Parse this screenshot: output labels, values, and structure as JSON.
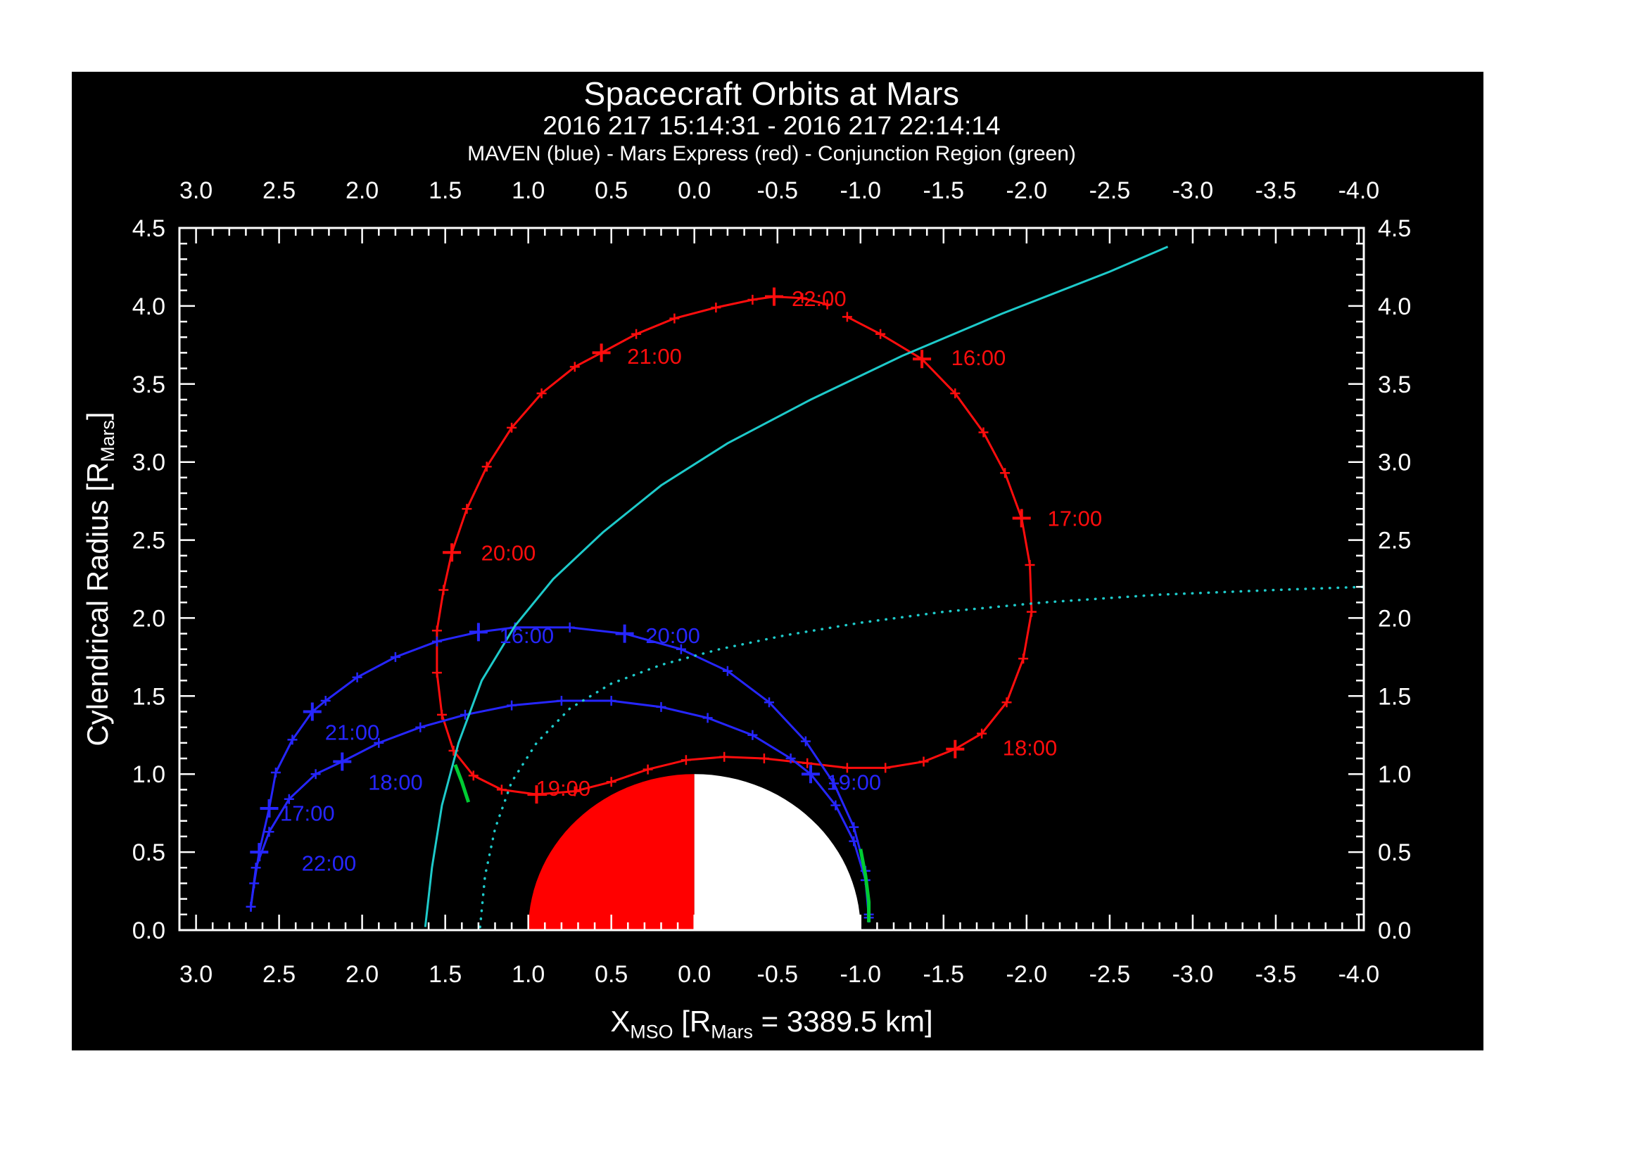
{
  "page": {
    "background": "#ffffff",
    "panel_background": "#000000"
  },
  "chart_data": {
    "type": "line",
    "title": "Spacecraft Orbits at Mars",
    "subtitle": "2016 217 15:14:31 - 2016 217 22:14:14",
    "legend_line": "MAVEN (blue) - Mars Express (red) - Conjunction Region (green)",
    "xlabel_parts": [
      "X",
      "MSO",
      " [R",
      "Mars",
      " = 3389.5 km]"
    ],
    "ylabel_parts": [
      "Cylendrical Radius [R",
      "Mars",
      "]"
    ],
    "x_range": [
      3.1,
      -4.03
    ],
    "y_range": [
      0.0,
      4.5
    ],
    "x_ticks": [
      3.0,
      2.5,
      2.0,
      1.5,
      1.0,
      0.5,
      0.0,
      -0.5,
      -1.0,
      -1.5,
      -2.0,
      -2.5,
      -3.0,
      -3.5,
      -4.0
    ],
    "x_tick_labels": [
      "3.0",
      "2.5",
      "2.0",
      "1.5",
      "1.0",
      "0.5",
      "0.0",
      "-0.5",
      "-1.0",
      "-1.5",
      "-2.0",
      "-2.5",
      "-3.0",
      "-3.5",
      "-4.0"
    ],
    "y_ticks": [
      0.0,
      0.5,
      1.0,
      1.5,
      2.0,
      2.5,
      3.0,
      3.5,
      4.0,
      4.5
    ],
    "y_tick_labels": [
      "0.0",
      "0.5",
      "1.0",
      "1.5",
      "2.0",
      "2.5",
      "3.0",
      "3.5",
      "4.0",
      "4.5"
    ],
    "grid": false,
    "frame_color": "#ffffff",
    "colors": {
      "maven": "#2626ff",
      "mars_express": "#ff0d0d",
      "boundary": "#1ecaca",
      "conjunction": "#00cc33"
    },
    "mars": {
      "radius": 1.0,
      "dayside_color": "#ff0000",
      "nightside_color": "#ffffff"
    },
    "series": [
      {
        "name": "mars-express-orbit",
        "color": "mars_express",
        "width": 3,
        "vertex_ticks": true,
        "points": [
          [
            -0.92,
            3.93
          ],
          [
            -1.12,
            3.82
          ],
          [
            -1.37,
            3.66
          ],
          [
            -1.57,
            3.44
          ],
          [
            -1.74,
            3.19
          ],
          [
            -1.87,
            2.93
          ],
          [
            -1.97,
            2.64
          ],
          [
            -2.02,
            2.34
          ],
          [
            -2.03,
            2.04
          ],
          [
            -1.98,
            1.74
          ],
          [
            -1.88,
            1.46
          ],
          [
            -1.73,
            1.26
          ],
          [
            -1.57,
            1.16
          ],
          [
            -1.38,
            1.08
          ],
          [
            -1.15,
            1.04
          ],
          [
            -0.92,
            1.04
          ],
          [
            -0.68,
            1.07
          ],
          [
            -0.42,
            1.1
          ],
          [
            -0.18,
            1.11
          ],
          [
            0.05,
            1.09
          ],
          [
            0.28,
            1.03
          ],
          [
            0.5,
            0.95
          ],
          [
            0.72,
            0.89
          ],
          [
            0.95,
            0.87
          ],
          [
            1.16,
            0.9
          ],
          [
            1.33,
            0.99
          ],
          [
            1.45,
            1.15
          ],
          [
            1.52,
            1.38
          ],
          [
            1.55,
            1.65
          ],
          [
            1.55,
            1.92
          ],
          [
            1.51,
            2.18
          ],
          [
            1.46,
            2.42
          ],
          [
            1.37,
            2.7
          ],
          [
            1.25,
            2.97
          ],
          [
            1.1,
            3.22
          ],
          [
            0.92,
            3.44
          ],
          [
            0.72,
            3.61
          ],
          [
            0.56,
            3.7
          ],
          [
            0.35,
            3.82
          ],
          [
            0.12,
            3.92
          ],
          [
            -0.13,
            3.99
          ],
          [
            -0.35,
            4.04
          ],
          [
            -0.48,
            4.06
          ],
          [
            -0.65,
            4.05
          ],
          [
            -0.8,
            4.01
          ]
        ]
      },
      {
        "name": "maven-orbit-outer",
        "color": "maven",
        "width": 3,
        "vertex_ticks": true,
        "points": [
          [
            -1.05,
            0.1
          ],
          [
            -1.03,
            0.38
          ],
          [
            -0.96,
            0.66
          ],
          [
            -0.84,
            0.94
          ],
          [
            -0.67,
            1.21
          ],
          [
            -0.45,
            1.46
          ],
          [
            -0.2,
            1.66
          ],
          [
            0.08,
            1.8
          ],
          [
            0.42,
            1.9
          ],
          [
            0.75,
            1.94
          ],
          [
            1.08,
            1.94
          ],
          [
            1.3,
            1.91
          ],
          [
            1.55,
            1.85
          ],
          [
            1.8,
            1.75
          ],
          [
            2.03,
            1.62
          ],
          [
            2.22,
            1.47
          ],
          [
            2.3,
            1.4
          ],
          [
            2.42,
            1.22
          ],
          [
            2.52,
            1.01
          ],
          [
            2.56,
            0.78
          ],
          [
            2.62,
            0.5
          ],
          [
            2.65,
            0.3
          ],
          [
            2.67,
            0.15
          ]
        ]
      },
      {
        "name": "maven-orbit-inner",
        "color": "maven",
        "width": 3,
        "vertex_ticks": true,
        "points": [
          [
            2.67,
            0.15
          ],
          [
            2.64,
            0.4
          ],
          [
            2.56,
            0.63
          ],
          [
            2.44,
            0.84
          ],
          [
            2.28,
            1.0
          ],
          [
            2.12,
            1.08
          ],
          [
            1.9,
            1.2
          ],
          [
            1.65,
            1.3
          ],
          [
            1.38,
            1.38
          ],
          [
            1.1,
            1.44
          ],
          [
            0.8,
            1.47
          ],
          [
            0.5,
            1.47
          ],
          [
            0.2,
            1.43
          ],
          [
            -0.08,
            1.36
          ],
          [
            -0.35,
            1.25
          ],
          [
            -0.58,
            1.1
          ],
          [
            -0.7,
            1.0
          ],
          [
            -0.85,
            0.8
          ],
          [
            -0.96,
            0.57
          ],
          [
            -1.03,
            0.32
          ],
          [
            -1.05,
            0.08
          ]
        ]
      },
      {
        "name": "bow-shock-boundary",
        "color": "boundary",
        "width": 3,
        "vertex_ticks": false,
        "points": [
          [
            1.62,
            0.02
          ],
          [
            1.58,
            0.4
          ],
          [
            1.52,
            0.8
          ],
          [
            1.42,
            1.2
          ],
          [
            1.28,
            1.6
          ],
          [
            1.08,
            1.95
          ],
          [
            0.85,
            2.25
          ],
          [
            0.55,
            2.55
          ],
          [
            0.2,
            2.85
          ],
          [
            -0.2,
            3.12
          ],
          [
            -0.7,
            3.4
          ],
          [
            -1.25,
            3.68
          ],
          [
            -1.85,
            3.95
          ],
          [
            -2.5,
            4.22
          ],
          [
            -2.85,
            4.38
          ]
        ]
      },
      {
        "name": "pileup-boundary-dotted",
        "color": "boundary",
        "width": 3.5,
        "dash": "0.5 11",
        "vertex_ticks": false,
        "points": [
          [
            1.29,
            0.02
          ],
          [
            1.26,
            0.35
          ],
          [
            1.2,
            0.65
          ],
          [
            1.1,
            0.95
          ],
          [
            0.95,
            1.2
          ],
          [
            0.75,
            1.42
          ],
          [
            0.5,
            1.58
          ],
          [
            0.2,
            1.7
          ],
          [
            -0.15,
            1.8
          ],
          [
            -0.55,
            1.89
          ],
          [
            -1.0,
            1.97
          ],
          [
            -1.5,
            2.04
          ],
          [
            -2.1,
            2.1
          ],
          [
            -2.8,
            2.15
          ],
          [
            -3.5,
            2.18
          ],
          [
            -4.03,
            2.2
          ]
        ]
      },
      {
        "name": "conjunction-region-1",
        "color": "conjunction",
        "width": 5,
        "vertex_ticks": false,
        "points": [
          [
            1.44,
            1.06
          ],
          [
            1.4,
            0.95
          ],
          [
            1.36,
            0.82
          ]
        ]
      },
      {
        "name": "conjunction-region-2",
        "color": "conjunction",
        "width": 5,
        "vertex_ticks": false,
        "points": [
          [
            -1.0,
            0.52
          ],
          [
            -1.03,
            0.35
          ],
          [
            -1.05,
            0.18
          ],
          [
            -1.05,
            0.05
          ]
        ]
      }
    ],
    "hour_markers": [
      {
        "series": "mars_express",
        "x": -1.37,
        "y": 3.66
      },
      {
        "series": "mars_express",
        "x": -1.97,
        "y": 2.64
      },
      {
        "series": "mars_express",
        "x": -1.57,
        "y": 1.16
      },
      {
        "series": "mars_express",
        "x": 0.95,
        "y": 0.87
      },
      {
        "series": "mars_express",
        "x": 1.46,
        "y": 2.42
      },
      {
        "series": "mars_express",
        "x": 0.56,
        "y": 3.7
      },
      {
        "series": "mars_express",
        "x": -0.48,
        "y": 4.06
      },
      {
        "series": "maven",
        "x": 1.3,
        "y": 1.91
      },
      {
        "series": "maven",
        "x": 2.56,
        "y": 0.78
      },
      {
        "series": "maven",
        "x": 2.12,
        "y": 1.08
      },
      {
        "series": "maven",
        "x": -0.7,
        "y": 1.0
      },
      {
        "series": "maven",
        "x": 0.42,
        "y": 1.9
      },
      {
        "series": "maven",
        "x": 2.3,
        "y": 1.4
      },
      {
        "series": "maven",
        "x": 2.62,
        "y": 0.5
      }
    ],
    "hour_labels": [
      {
        "text": "16:00",
        "series": "mars_express",
        "x": -1.71,
        "y": 3.67
      },
      {
        "text": "17:00",
        "series": "mars_express",
        "x": -2.29,
        "y": 2.64
      },
      {
        "text": "18:00",
        "series": "mars_express",
        "x": -2.02,
        "y": 1.17
      },
      {
        "text": "19:00",
        "series": "mars_express",
        "x": 0.79,
        "y": 0.91
      },
      {
        "text": "20:00",
        "series": "mars_express",
        "x": 1.12,
        "y": 2.42
      },
      {
        "text": "21:00",
        "series": "mars_express",
        "x": 0.24,
        "y": 3.68
      },
      {
        "text": "22:00",
        "series": "mars_express",
        "x": -0.75,
        "y": 4.05
      },
      {
        "text": "16:00",
        "series": "maven",
        "x": 1.01,
        "y": 1.89
      },
      {
        "text": "17:00",
        "series": "maven",
        "x": 2.33,
        "y": 0.75
      },
      {
        "text": "18:00",
        "series": "maven",
        "x": 1.8,
        "y": 0.95
      },
      {
        "text": "19:00",
        "series": "maven",
        "x": -0.96,
        "y": 0.95
      },
      {
        "text": "20:00",
        "series": "maven",
        "x": 0.13,
        "y": 1.89
      },
      {
        "text": "21:00",
        "series": "maven",
        "x": 2.06,
        "y": 1.27
      },
      {
        "text": "22:00",
        "series": "maven",
        "x": 2.2,
        "y": 0.43
      }
    ]
  }
}
